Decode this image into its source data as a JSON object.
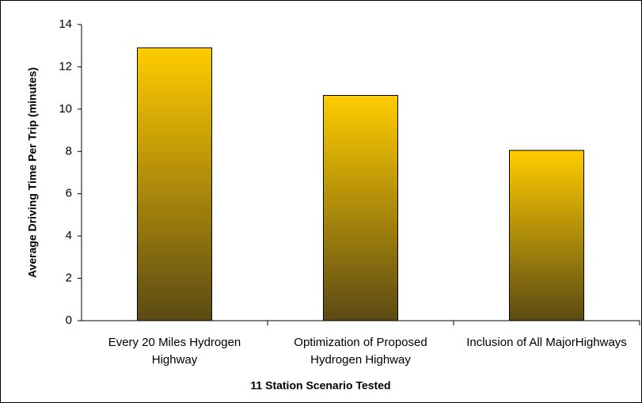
{
  "chart_data": {
    "type": "bar",
    "x_label": "11 Station Scenario Tested",
    "y_label": "Average Driving Time Per Trip (minutes)",
    "categories": [
      "Every 20 Miles Hydrogen Highway",
      "Optimization of Proposed Hydrogen Highway",
      "Inclusion of All MajorHighways"
    ],
    "values": [
      12.9,
      10.65,
      8.05
    ],
    "color": [
      "#ffcc00",
      "#5c4a14"
    ],
    "ylim": [
      0,
      14
    ],
    "yticks": [
      0,
      2,
      4,
      6,
      8,
      10,
      12,
      14
    ],
    "grid": false
  }
}
